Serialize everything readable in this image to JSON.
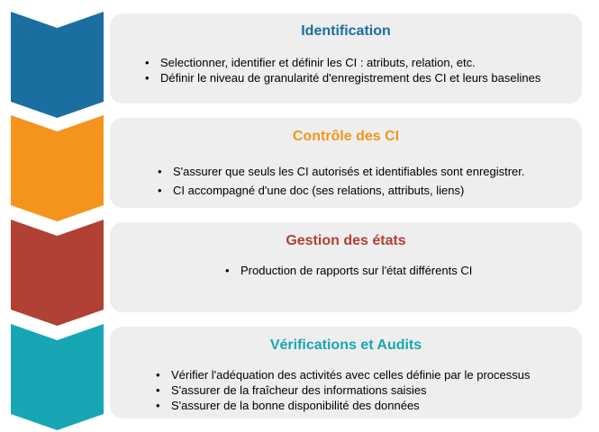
{
  "steps": [
    {
      "title": "Identification",
      "color": "#1a6ea0",
      "bullets": [
        "Selectionner, identifier et définir les CI : atributs, relation, etc.",
        "Définir le niveau de granularité d'enregistrement des CI et leurs baselines"
      ]
    },
    {
      "title": "Contrôle des CI",
      "color": "#f4941d",
      "bullets": [
        "S'assurer que seuls les CI autorisés et identifiables sont enregistrer.",
        "CI accompagné d'une doc (ses relations, attributs, liens)"
      ]
    },
    {
      "title": "Gestion des états",
      "color": "#b04134",
      "bullets": [
        "Production de rapports sur l'état différents CI"
      ]
    },
    {
      "title": "Vérifications et Audits",
      "color": "#17a6b4",
      "bullets": [
        "Vérifier l'adéquation des activités avec celles définie par le processus",
        "S'assurer de la fraîcheur des informations saisies",
        "S'assurer de la bonne disponibilité des données"
      ]
    }
  ]
}
